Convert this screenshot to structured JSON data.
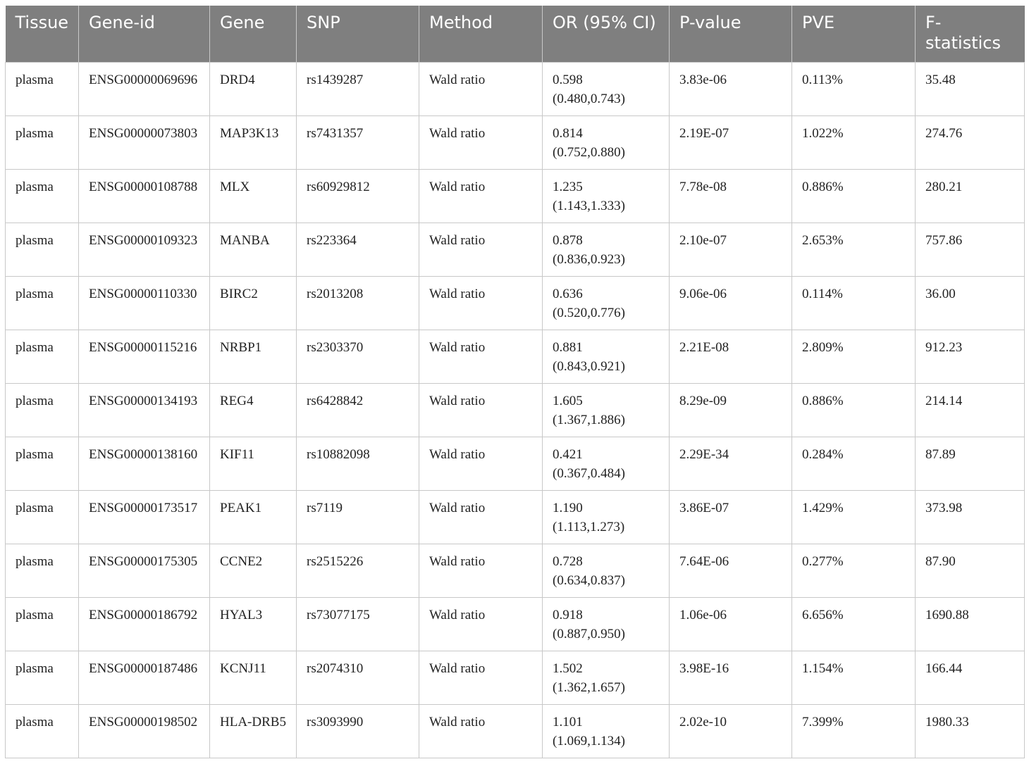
{
  "table": {
    "headers": [
      "Tissue",
      "Gene-id",
      "Gene",
      "SNP",
      "Method",
      "OR (95% CI)",
      "P-value",
      "PVE",
      "F-statistics"
    ],
    "rows": [
      {
        "tissue": "plasma",
        "gene_id": "ENSG00000069696",
        "gene": "DRD4",
        "snp": "rs1439287",
        "method": "Wald ratio",
        "or": "0.598",
        "ci": "(0.480,0.743)",
        "p_value": "3.83e-06",
        "pve": "0.113%",
        "f_stat": "35.48"
      },
      {
        "tissue": "plasma",
        "gene_id": "ENSG00000073803",
        "gene": "MAP3K13",
        "snp": "rs7431357",
        "method": "Wald ratio",
        "or": "0.814",
        "ci": "(0.752,0.880)",
        "p_value": "2.19E-07",
        "pve": "1.022%",
        "f_stat": "274.76"
      },
      {
        "tissue": "plasma",
        "gene_id": "ENSG00000108788",
        "gene": "MLX",
        "snp": "rs60929812",
        "method": "Wald ratio",
        "or": "1.235",
        "ci": "(1.143,1.333)",
        "p_value": "7.78e-08",
        "pve": "0.886%",
        "f_stat": "280.21"
      },
      {
        "tissue": "plasma",
        "gene_id": "ENSG00000109323",
        "gene": "MANBA",
        "snp": "rs223364",
        "method": "Wald ratio",
        "or": "0.878",
        "ci": "(0.836,0.923)",
        "p_value": "2.10e-07",
        "pve": "2.653%",
        "f_stat": "757.86"
      },
      {
        "tissue": "plasma",
        "gene_id": "ENSG00000110330",
        "gene": "BIRC2",
        "snp": "rs2013208",
        "method": "Wald ratio",
        "or": "0.636",
        "ci": "(0.520,0.776)",
        "p_value": "9.06e-06",
        "pve": "0.114%",
        "f_stat": "36.00"
      },
      {
        "tissue": "plasma",
        "gene_id": "ENSG00000115216",
        "gene": "NRBP1",
        "snp": "rs2303370",
        "method": "Wald ratio",
        "or": "0.881",
        "ci": "(0.843,0.921)",
        "p_value": "2.21E-08",
        "pve": "2.809%",
        "f_stat": "912.23"
      },
      {
        "tissue": "plasma",
        "gene_id": "ENSG00000134193",
        "gene": "REG4",
        "snp": "rs6428842",
        "method": "Wald ratio",
        "or": "1.605",
        "ci": "(1.367,1.886)",
        "p_value": "8.29e-09",
        "pve": "0.886%",
        "f_stat": "214.14"
      },
      {
        "tissue": "plasma",
        "gene_id": "ENSG00000138160",
        "gene": "KIF11",
        "snp": "rs10882098",
        "method": "Wald ratio",
        "or": "0.421",
        "ci": "(0.367,0.484)",
        "p_value": "2.29E-34",
        "pve": "0.284%",
        "f_stat": "87.89"
      },
      {
        "tissue": "plasma",
        "gene_id": "ENSG00000173517",
        "gene": "PEAK1",
        "snp": "rs7119",
        "method": "Wald ratio",
        "or": "1.190",
        "ci": "(1.113,1.273)",
        "p_value": "3.86E-07",
        "pve": "1.429%",
        "f_stat": "373.98"
      },
      {
        "tissue": "plasma",
        "gene_id": "ENSG00000175305",
        "gene": "CCNE2",
        "snp": "rs2515226",
        "method": "Wald ratio",
        "or": "0.728",
        "ci": "(0.634,0.837)",
        "p_value": "7.64E-06",
        "pve": "0.277%",
        "f_stat": "87.90"
      },
      {
        "tissue": "plasma",
        "gene_id": "ENSG00000186792",
        "gene": "HYAL3",
        "snp": "rs73077175",
        "method": "Wald ratio",
        "or": "0.918",
        "ci": "(0.887,0.950)",
        "p_value": "1.06e-06",
        "pve": "6.656%",
        "f_stat": "1690.88"
      },
      {
        "tissue": "plasma",
        "gene_id": "ENSG00000187486",
        "gene": "KCNJ11",
        "snp": "rs2074310",
        "method": "Wald ratio",
        "or": "1.502",
        "ci": "(1.362,1.657)",
        "p_value": "3.98E-16",
        "pve": "1.154%",
        "f_stat": "166.44"
      },
      {
        "tissue": "plasma",
        "gene_id": "ENSG00000198502",
        "gene": "HLA-DRB5",
        "snp": "rs3093990",
        "method": "Wald ratio",
        "or": "1.101",
        "ci": "(1.069,1.134)",
        "p_value": "2.02e-10",
        "pve": "7.399%",
        "f_stat": "1980.33"
      }
    ]
  }
}
